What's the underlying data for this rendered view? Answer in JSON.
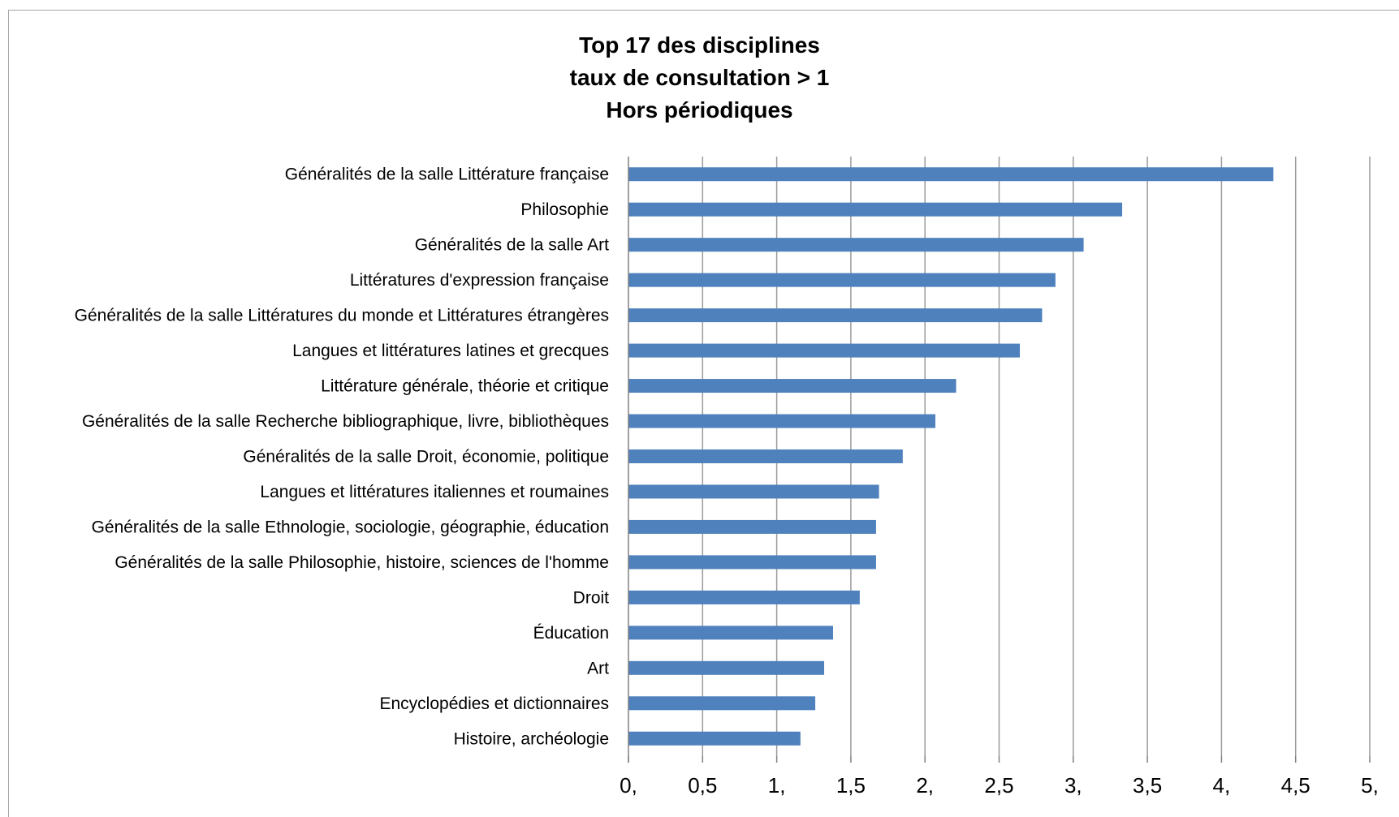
{
  "chart_data": {
    "type": "bar",
    "orientation": "horizontal",
    "title_lines": [
      "Top 17 des disciplines",
      "taux de consultation > 1",
      "Hors périodiques"
    ],
    "xlabel": "",
    "ylabel": "",
    "xlim": [
      0,
      5
    ],
    "x_ticks": [
      0,
      0.5,
      1,
      1.5,
      2,
      2.5,
      3,
      3.5,
      4,
      4.5,
      5
    ],
    "x_tick_labels": [
      "0,",
      "0,5",
      "1,",
      "1,5",
      "2,",
      "2,5",
      "3,",
      "3,5",
      "4,",
      "4,5",
      "5,"
    ],
    "grid": "vertical",
    "legend": "none",
    "bar_color": "#4f81bd",
    "categories": [
      "Généralités de la salle Littérature française",
      "Philosophie",
      "Généralités de la salle Art",
      "Littératures d'expression française",
      "Généralités de la salle Littératures du monde et Littératures étrangères",
      "Langues et littératures latines et grecques",
      "Littérature générale, théorie et critique",
      "Généralités de la salle Recherche bibliographique, livre, bibliothèques",
      "Généralités de la salle Droit, économie, politique",
      "Langues et littératures italiennes et roumaines",
      "Généralités de la salle Ethnologie, sociologie, géographie, éducation",
      "Généralités de la salle Philosophie, histoire, sciences de l'homme",
      "Droit",
      "Éducation",
      "Art",
      "Encyclopédies et dictionnaires",
      "Histoire, archéologie"
    ],
    "values": [
      4.35,
      3.33,
      3.07,
      2.88,
      2.79,
      2.64,
      2.21,
      2.07,
      1.85,
      1.69,
      1.67,
      1.67,
      1.56,
      1.38,
      1.32,
      1.26,
      1.16
    ]
  }
}
